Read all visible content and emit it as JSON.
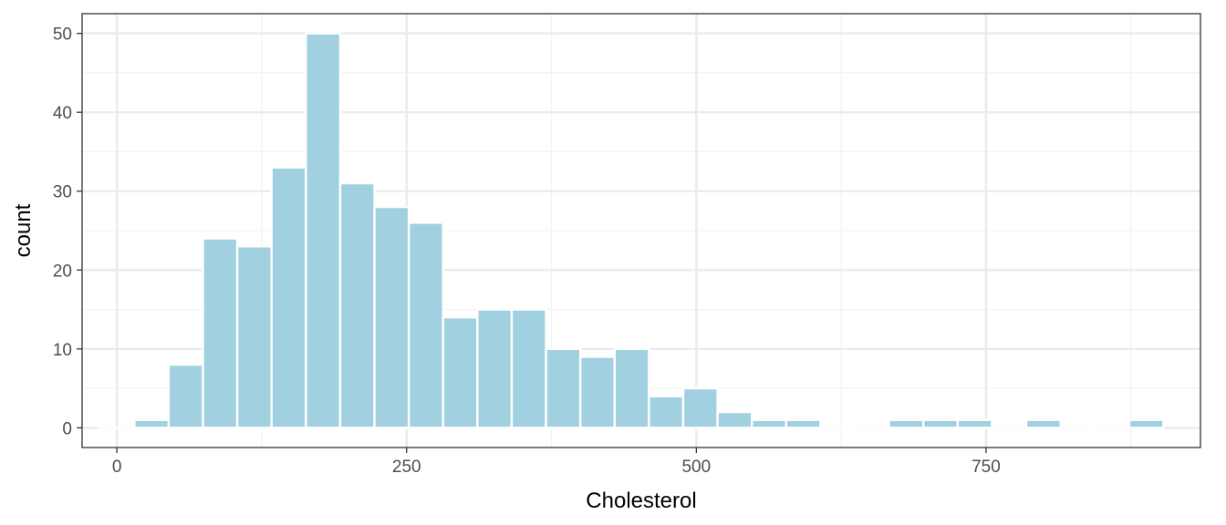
{
  "chart_data": {
    "type": "bar",
    "xlabel": "Cholesterol",
    "ylabel": "count",
    "xlim": [
      -30,
      935
    ],
    "ylim": [
      -2.5,
      52.5
    ],
    "x_ticks": [
      0,
      250,
      500,
      750
    ],
    "y_ticks": [
      0,
      10,
      20,
      30,
      40,
      50
    ],
    "grid": true,
    "bar_fill": "#a1d0e0",
    "bar_outline": "#ffffff",
    "bin_width": 29.6,
    "bins": [
      {
        "x": 0.3,
        "count": 0
      },
      {
        "x": 29.9,
        "count": 1
      },
      {
        "x": 59.5,
        "count": 8
      },
      {
        "x": 89.1,
        "count": 24
      },
      {
        "x": 118.7,
        "count": 23
      },
      {
        "x": 148.3,
        "count": 33
      },
      {
        "x": 177.9,
        "count": 50
      },
      {
        "x": 207.5,
        "count": 31
      },
      {
        "x": 237.1,
        "count": 28
      },
      {
        "x": 266.7,
        "count": 26
      },
      {
        "x": 296.3,
        "count": 14
      },
      {
        "x": 325.9,
        "count": 15
      },
      {
        "x": 355.5,
        "count": 15
      },
      {
        "x": 385.1,
        "count": 10
      },
      {
        "x": 414.7,
        "count": 9
      },
      {
        "x": 444.3,
        "count": 10
      },
      {
        "x": 473.9,
        "count": 4
      },
      {
        "x": 503.5,
        "count": 5
      },
      {
        "x": 533.1,
        "count": 2
      },
      {
        "x": 562.7,
        "count": 1
      },
      {
        "x": 592.3,
        "count": 1
      },
      {
        "x": 621.9,
        "count": 0
      },
      {
        "x": 651.5,
        "count": 0
      },
      {
        "x": 681.1,
        "count": 1
      },
      {
        "x": 710.7,
        "count": 1
      },
      {
        "x": 740.3,
        "count": 1
      },
      {
        "x": 769.9,
        "count": 0
      },
      {
        "x": 799.5,
        "count": 1
      },
      {
        "x": 829.1,
        "count": 0
      },
      {
        "x": 858.7,
        "count": 0
      },
      {
        "x": 888.3,
        "count": 1
      }
    ]
  },
  "theme": {
    "panel_border": "#333333",
    "grid_major": "#ebebeb",
    "grid_minor": "#f2f2f2",
    "tick_color": "#333333",
    "tick_label_color": "#4d4d4d"
  }
}
